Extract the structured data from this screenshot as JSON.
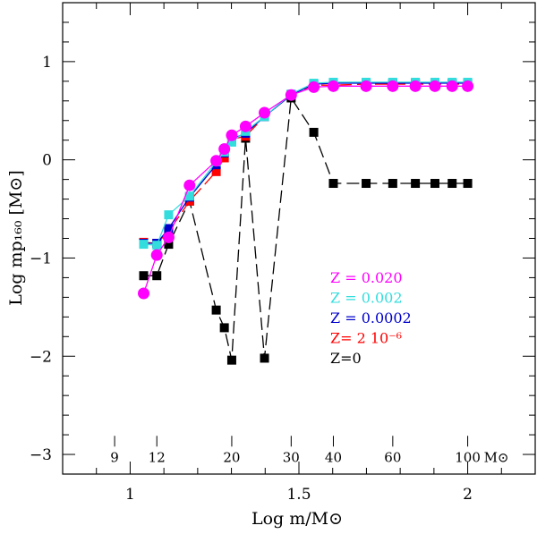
{
  "chart_data": {
    "type": "line",
    "title": "",
    "xlabel": "Log m/M⊙",
    "ylabel": "Log mp₁₆₀ [M⊙]",
    "xlim": [
      0.8,
      2.2
    ],
    "ylim": [
      -3.2,
      1.6
    ],
    "grid": false,
    "x_ticks": [
      {
        "value": 1,
        "label": "1"
      },
      {
        "value": 1.5,
        "label": "1.5"
      },
      {
        "value": 2,
        "label": "2"
      }
    ],
    "y_ticks": [
      {
        "value": 1,
        "label": "1"
      },
      {
        "value": 0,
        "label": "0"
      },
      {
        "value": -1,
        "label": "−1"
      },
      {
        "value": -2,
        "label": "−2"
      },
      {
        "value": -3,
        "label": "−3"
      }
    ],
    "mass_scale": {
      "y": -2.92,
      "ticks": [
        {
          "value": 0.954,
          "label": "9"
        },
        {
          "value": 1.079,
          "label": "12"
        },
        {
          "value": 1.301,
          "label": "20"
        },
        {
          "value": 1.477,
          "label": "30"
        },
        {
          "value": 1.602,
          "label": "40"
        },
        {
          "value": 1.778,
          "label": "60"
        },
        {
          "value": 2.0,
          "label": "100"
        }
      ],
      "unit_label": "M⊙"
    },
    "series": [
      {
        "name": "Z=0",
        "color": "#000000",
        "dashed": true,
        "marker": "square",
        "points": [
          [
            1.04,
            -1.18
          ],
          [
            1.079,
            -1.18
          ],
          [
            1.114,
            -0.86
          ],
          [
            1.176,
            -0.42
          ],
          [
            1.255,
            -1.53
          ],
          [
            1.279,
            -1.71
          ],
          [
            1.301,
            -2.04
          ],
          [
            1.342,
            0.22
          ],
          [
            1.398,
            -2.02
          ],
          [
            1.477,
            0.63
          ],
          [
            1.544,
            0.28
          ],
          [
            1.602,
            -0.24
          ],
          [
            1.699,
            -0.24
          ],
          [
            1.778,
            -0.24
          ],
          [
            1.845,
            -0.24
          ],
          [
            1.903,
            -0.24
          ],
          [
            1.954,
            -0.24
          ],
          [
            2.0,
            -0.24
          ]
        ]
      },
      {
        "name": "Z= 2 10⁻⁶",
        "color": "#ff0000",
        "dashed": true,
        "marker": "square",
        "points": [
          [
            1.04,
            -0.84
          ],
          [
            1.079,
            -0.85
          ],
          [
            1.114,
            -0.73
          ],
          [
            1.176,
            -0.42
          ],
          [
            1.255,
            -0.12
          ],
          [
            1.279,
            0.02
          ],
          [
            1.301,
            0.21
          ],
          [
            1.342,
            0.24
          ],
          [
            1.398,
            0.44
          ],
          [
            1.477,
            0.66
          ],
          [
            1.544,
            0.76
          ],
          [
            1.602,
            0.76
          ],
          [
            1.699,
            0.77
          ],
          [
            1.778,
            0.77
          ],
          [
            1.845,
            0.77
          ],
          [
            1.903,
            0.77
          ],
          [
            1.954,
            0.77
          ],
          [
            2.0,
            0.77
          ]
        ]
      },
      {
        "name": "Z = 0.0002",
        "color": "#0000cc",
        "dashed": false,
        "marker": "square",
        "points": [
          [
            1.04,
            -0.85
          ],
          [
            1.079,
            -0.85
          ],
          [
            1.114,
            -0.7
          ],
          [
            1.176,
            -0.38
          ],
          [
            1.255,
            -0.05
          ],
          [
            1.279,
            0.07
          ],
          [
            1.301,
            0.21
          ],
          [
            1.342,
            0.27
          ],
          [
            1.398,
            0.44
          ],
          [
            1.477,
            0.66
          ],
          [
            1.544,
            0.77
          ],
          [
            1.602,
            0.78
          ],
          [
            1.699,
            0.78
          ],
          [
            1.778,
            0.78
          ],
          [
            1.845,
            0.78
          ],
          [
            1.903,
            0.78
          ],
          [
            1.954,
            0.78
          ],
          [
            2.0,
            0.78
          ]
        ]
      },
      {
        "name": "Z = 0.002",
        "color": "#33dddd",
        "dashed": false,
        "marker": "square",
        "points": [
          [
            1.04,
            -0.86
          ],
          [
            1.079,
            -0.87
          ],
          [
            1.114,
            -0.56
          ],
          [
            1.176,
            -0.37
          ],
          [
            1.255,
            -0.02
          ],
          [
            1.279,
            0.08
          ],
          [
            1.301,
            0.18
          ],
          [
            1.342,
            0.29
          ],
          [
            1.398,
            0.44
          ],
          [
            1.477,
            0.67
          ],
          [
            1.544,
            0.78
          ],
          [
            1.602,
            0.79
          ],
          [
            1.699,
            0.79
          ],
          [
            1.778,
            0.79
          ],
          [
            1.845,
            0.79
          ],
          [
            1.903,
            0.79
          ],
          [
            1.954,
            0.79
          ],
          [
            2.0,
            0.79
          ]
        ]
      },
      {
        "name": "Z = 0.020",
        "color": "#ff00ff",
        "dashed": false,
        "marker": "circle",
        "points": [
          [
            1.04,
            -1.36
          ],
          [
            1.079,
            -0.97
          ],
          [
            1.114,
            -0.79
          ],
          [
            1.176,
            -0.26
          ],
          [
            1.255,
            -0.01
          ],
          [
            1.279,
            0.11
          ],
          [
            1.301,
            0.25
          ],
          [
            1.342,
            0.34
          ],
          [
            1.398,
            0.48
          ],
          [
            1.477,
            0.66
          ],
          [
            1.544,
            0.74
          ],
          [
            1.602,
            0.75
          ],
          [
            1.699,
            0.75
          ],
          [
            1.778,
            0.75
          ],
          [
            1.845,
            0.75
          ],
          [
            1.903,
            0.75
          ],
          [
            1.954,
            0.75
          ],
          [
            2.0,
            0.75
          ]
        ]
      }
    ],
    "legend": {
      "placement": "lower-right",
      "entries": [
        {
          "label": "Z = 0.020",
          "color": "#ff00ff"
        },
        {
          "label": "Z = 0.002",
          "color": "#33dddd"
        },
        {
          "label": "Z = 0.0002",
          "color": "#0000cc"
        },
        {
          "label": "Z= 2 10⁻⁶",
          "color": "#ff0000"
        },
        {
          "label": "Z=0",
          "color": "#000000"
        }
      ]
    }
  }
}
